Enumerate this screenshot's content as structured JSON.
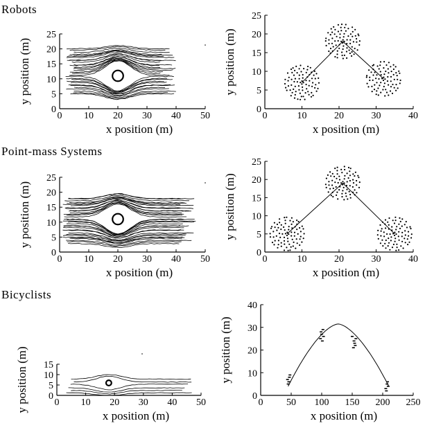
{
  "sections": [
    {
      "title": "Robots"
    },
    {
      "title": "Point-mass Systems"
    },
    {
      "title": "Bicyclists"
    }
  ],
  "chart_data": [
    {
      "id": "robots-trajectories",
      "type": "line",
      "xlabel": "x position (m)",
      "ylabel": "y position (m)",
      "xlim": [
        0,
        50
      ],
      "ylim": [
        0,
        25
      ],
      "xticks": [
        "0",
        "10",
        "20",
        "30",
        "40",
        "50"
      ],
      "yticks": [
        "0",
        "5",
        "10",
        "15",
        "20",
        "25"
      ],
      "obstacle": {
        "x": 20,
        "y": 11,
        "r": 1.8
      }
    },
    {
      "id": "robots-groups",
      "type": "scatter",
      "xlabel": "x position (m)",
      "ylabel": "y position (m)",
      "xlim": [
        0,
        40
      ],
      "ylim": [
        0,
        25
      ],
      "xticks": [
        "0",
        "10",
        "20",
        "30",
        "40"
      ],
      "yticks": [
        "0",
        "5",
        "10",
        "15",
        "20",
        "25"
      ],
      "clusters": [
        {
          "x": 10,
          "y": 7,
          "r": 5
        },
        {
          "x": 21,
          "y": 18,
          "r": 5
        },
        {
          "x": 32,
          "y": 8,
          "r": 5
        }
      ],
      "path": [
        [
          10,
          7
        ],
        [
          21,
          18
        ],
        [
          32,
          8
        ]
      ]
    },
    {
      "id": "pointmass-trajectories",
      "type": "line",
      "xlabel": "x position (m)",
      "ylabel": "y position (m)",
      "xlim": [
        0,
        50
      ],
      "ylim": [
        0,
        25
      ],
      "xticks": [
        "0",
        "10",
        "20",
        "30",
        "40",
        "50"
      ],
      "yticks": [
        "0",
        "5",
        "10",
        "15",
        "20",
        "25"
      ],
      "obstacle": {
        "x": 20,
        "y": 11,
        "r": 1.8
      }
    },
    {
      "id": "pointmass-groups",
      "type": "scatter",
      "xlabel": "x position (m)",
      "ylabel": "y position (m)",
      "xlim": [
        0,
        40
      ],
      "ylim": [
        0,
        25
      ],
      "xticks": [
        "0",
        "10",
        "20",
        "30",
        "40"
      ],
      "yticks": [
        "0",
        "5",
        "10",
        "15",
        "20",
        "25"
      ],
      "clusters": [
        {
          "x": 6,
          "y": 5,
          "r": 5
        },
        {
          "x": 21,
          "y": 19,
          "r": 5
        },
        {
          "x": 35,
          "y": 5,
          "r": 5
        }
      ],
      "path": [
        [
          6,
          5
        ],
        [
          21,
          19
        ],
        [
          35,
          5
        ]
      ]
    },
    {
      "id": "bicyclists-trajectories",
      "type": "line",
      "xlabel": "x position (m)",
      "ylabel": "y position (m)",
      "xlim": [
        0,
        50
      ],
      "ylim": [
        0,
        15
      ],
      "xticks": [
        "0",
        "10",
        "20",
        "30",
        "40",
        "50"
      ],
      "yticks": [
        "0",
        "5",
        "10",
        "15"
      ],
      "obstacle": {
        "x": 18,
        "y": 6,
        "r": 1.3
      }
    },
    {
      "id": "bicyclists-groups",
      "type": "scatter",
      "xlabel": "x position (m)",
      "ylabel": "y position (m)",
      "xlim": [
        0,
        250
      ],
      "ylim": [
        0,
        40
      ],
      "xticks": [
        "0",
        "50",
        "100",
        "150",
        "200",
        "250"
      ],
      "yticks": [
        "0",
        "10",
        "20",
        "30",
        "40"
      ],
      "points": [
        [
          45,
          5
        ],
        [
          46,
          6
        ],
        [
          47,
          8
        ],
        [
          48,
          9
        ],
        [
          44,
          7
        ],
        [
          98,
          25
        ],
        [
          100,
          27
        ],
        [
          102,
          29
        ],
        [
          99,
          28
        ],
        [
          101,
          24
        ],
        [
          103,
          26
        ],
        [
          150,
          26
        ],
        [
          153,
          24
        ],
        [
          155,
          22
        ],
        [
          152,
          21
        ],
        [
          156,
          25
        ],
        [
          154,
          23
        ],
        [
          205,
          3
        ],
        [
          207,
          5
        ],
        [
          209,
          4
        ],
        [
          206,
          2
        ],
        [
          208,
          6
        ]
      ],
      "curve_peak": [
        127,
        31.5
      ],
      "curve_ends": [
        [
          45,
          4
        ],
        [
          210,
          4
        ]
      ]
    }
  ]
}
